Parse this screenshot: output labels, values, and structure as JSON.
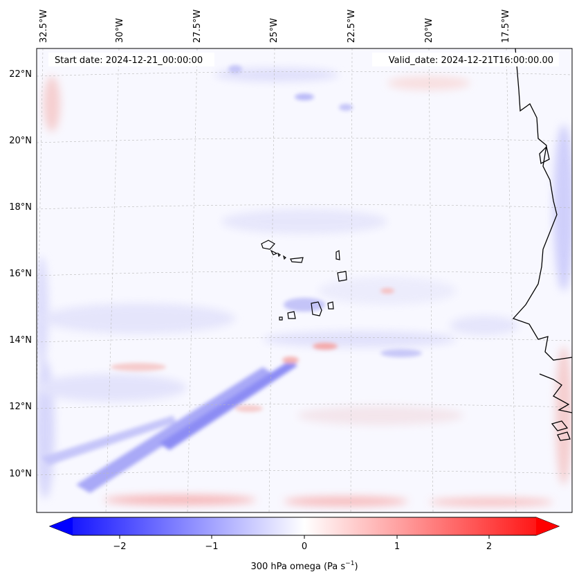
{
  "map": {
    "start_date": "Start date: 2024-12-21_00:00:00",
    "valid_date": "Valid_date: 2024-12-21T16:00:00.00",
    "lon_labels": [
      "32.5°W",
      "30°W",
      "27.5°W",
      "25°W",
      "22.5°W",
      "20°W",
      "17.5°W"
    ],
    "lat_labels": [
      "22°N",
      "20°N",
      "18°N",
      "16°N",
      "14°N",
      "12°N",
      "10°N"
    ],
    "field_name": "300 hPa omega"
  },
  "colorbar": {
    "ticks": [
      "−2",
      "−1",
      "0",
      "1",
      "2"
    ],
    "label": "300 hPa omega (Pa s",
    "label_sup": "−1",
    "label_end": ")",
    "neg_color": "#0000ff",
    "zero_color": "#ffffff",
    "pos_color": "#ff0000"
  }
}
